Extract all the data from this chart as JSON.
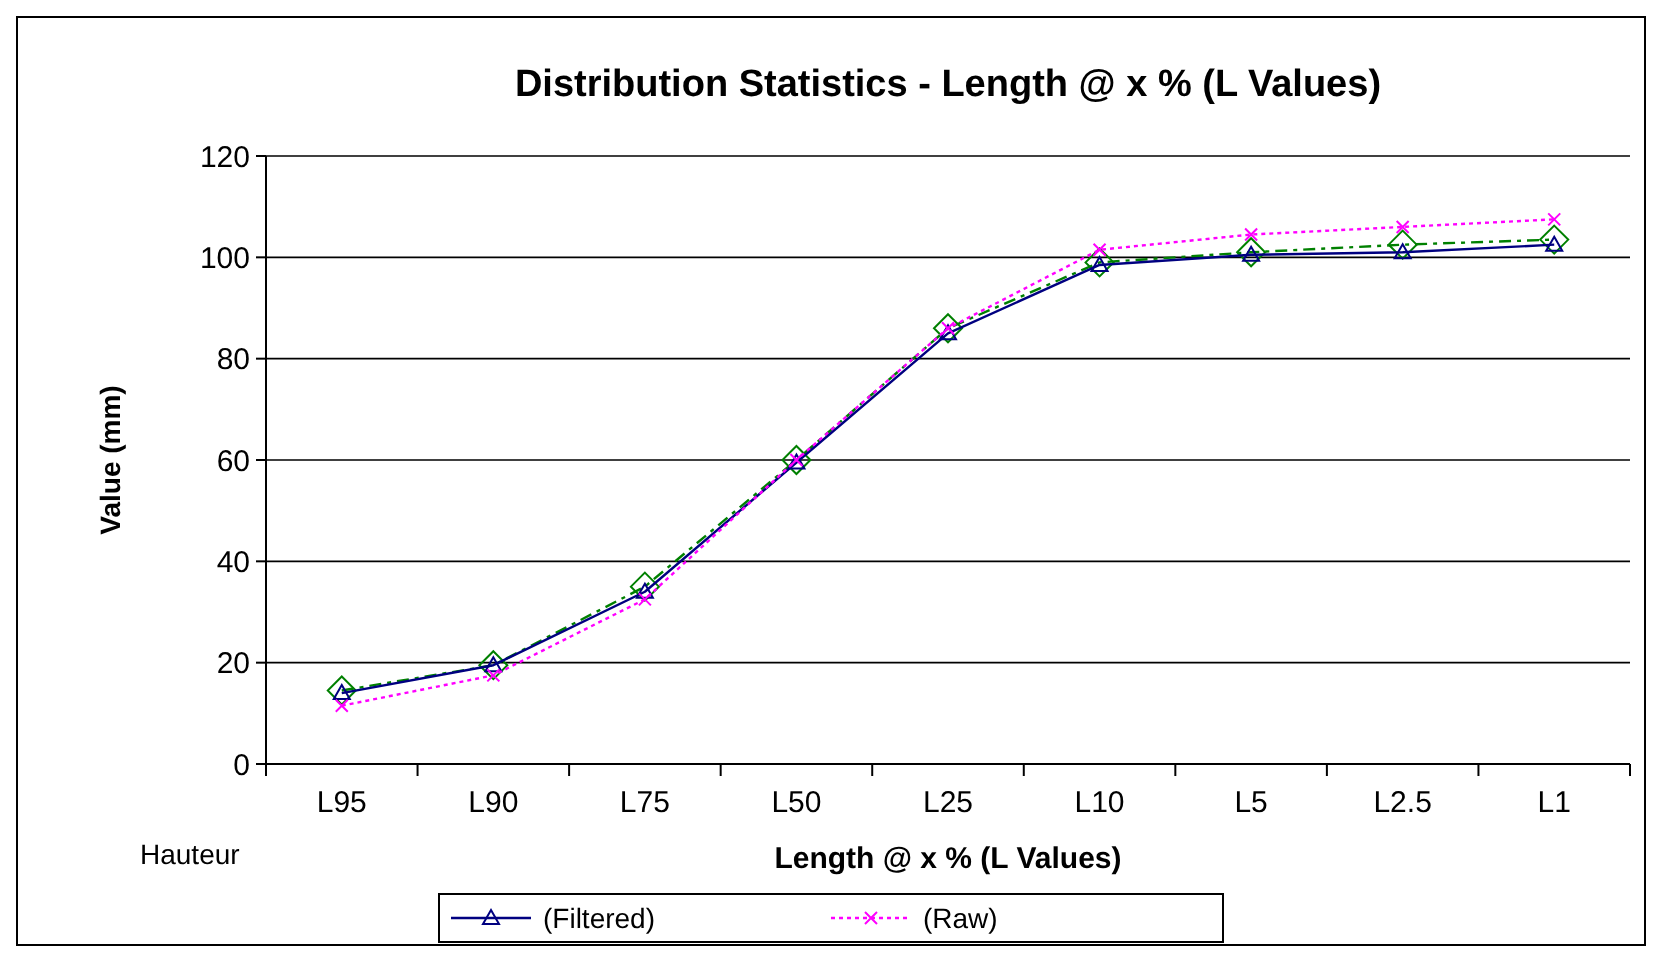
{
  "chart_data": {
    "type": "line",
    "title": "Distribution Statistics - Length @ x % (L Values)",
    "xlabel": "Length @ x % (L Values)",
    "ylabel": "Value (mm)",
    "annotations": [
      "Hauteur"
    ],
    "categories": [
      "L95",
      "L90",
      "L75",
      "L50",
      "L25",
      "L10",
      "L5",
      "L2.5",
      "L1"
    ],
    "ylim": [
      0,
      120
    ],
    "yticks": [
      0,
      20,
      40,
      60,
      80,
      100,
      120
    ],
    "grid": "y",
    "legend": "bottom",
    "series": [
      {
        "color": "#008000",
        "marker": "diamond",
        "line_style": "dashed",
        "values": [
          14.5,
          19.5,
          35,
          60,
          86,
          99,
          101,
          102.5,
          103.5
        ]
      },
      {
        "name": "(Filtered)",
        "color": "#000080",
        "marker": "triangle",
        "line_style": "solid",
        "values": [
          14,
          19.5,
          34,
          59.5,
          85,
          98.5,
          100.5,
          101,
          102.5
        ]
      },
      {
        "name": "(Raw)",
        "color": "#ff00ff",
        "marker": "cross",
        "line_style": "dotted",
        "values": [
          11.5,
          17.5,
          32.5,
          60,
          86,
          101.5,
          104.5,
          106,
          107.5
        ]
      }
    ]
  }
}
